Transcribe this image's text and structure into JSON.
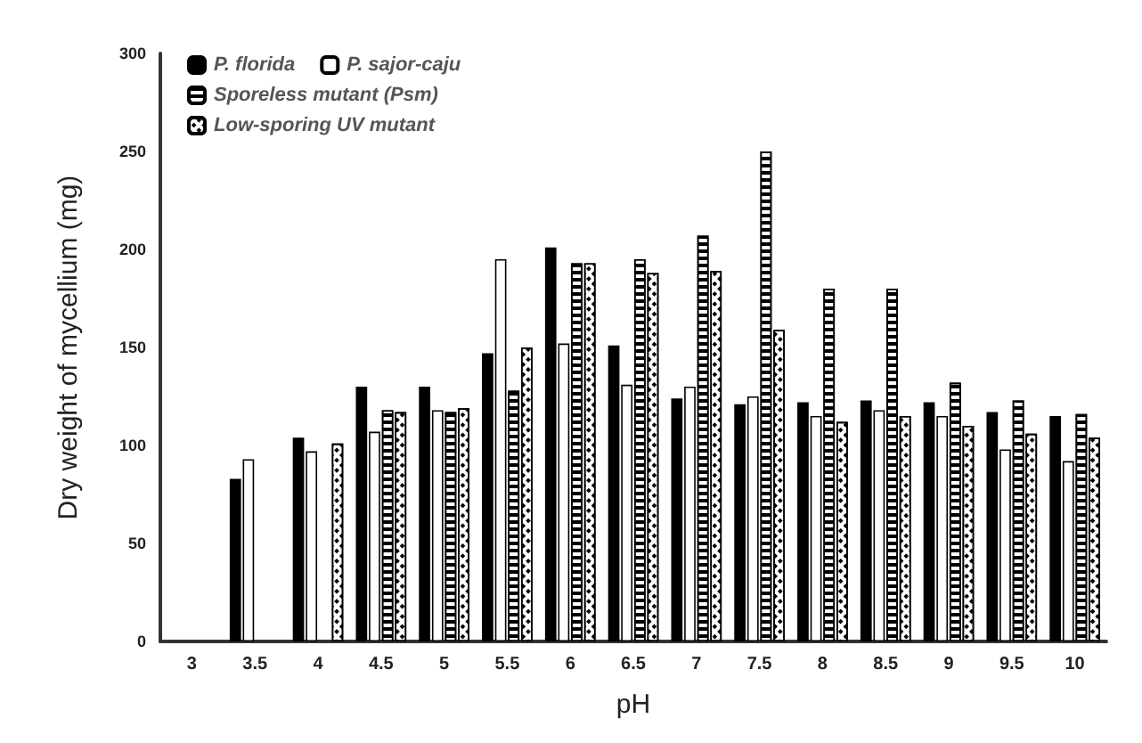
{
  "chart_data": {
    "type": "bar",
    "xlabel": "pH",
    "ylabel": "Dry weight of mycellium (mg)",
    "categories": [
      "3",
      "3.5",
      "4",
      "4.5",
      "5",
      "5.5",
      "6",
      "6.5",
      "7",
      "7.5",
      "8",
      "8.5",
      "9",
      "9.5",
      "10"
    ],
    "series": [
      {
        "name": "P. florida",
        "color": "#000000",
        "values": [
          null,
          83,
          104,
          130,
          130,
          147,
          201,
          151,
          124,
          121,
          122,
          123,
          122,
          117,
          115
        ]
      },
      {
        "name": "P. sajor-caju",
        "color": "#ffffff",
        "values": [
          null,
          93,
          97,
          107,
          118,
          195,
          152,
          131,
          130,
          125,
          115,
          118,
          115,
          98,
          92
        ]
      },
      {
        "name": "Sporeless mutant (Psm)",
        "color": "#ffffff",
        "values": [
          null,
          null,
          null,
          118,
          117,
          128,
          193,
          195,
          207,
          250,
          180,
          180,
          132,
          123,
          116
        ]
      },
      {
        "name": "Low-sporing UV mutant",
        "color": "#ffffff",
        "values": [
          null,
          null,
          101,
          117,
          119,
          150,
          193,
          188,
          189,
          159,
          112,
          115,
          110,
          106,
          104
        ]
      }
    ],
    "ylim": [
      0,
      300
    ],
    "yticks": [
      0,
      50,
      100,
      150,
      200,
      250,
      300
    ],
    "grid": false,
    "legend": "top left"
  }
}
